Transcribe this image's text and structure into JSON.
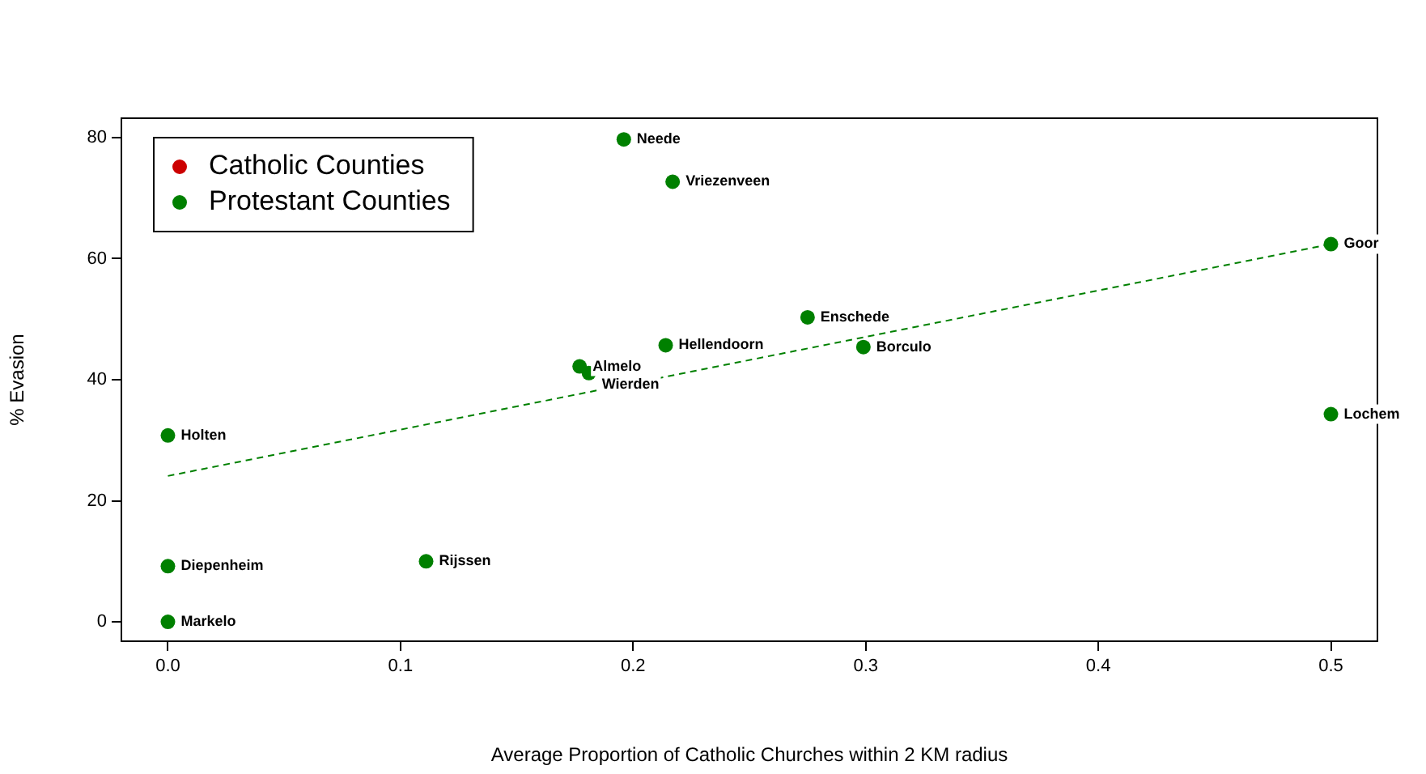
{
  "chart_data": {
    "type": "scatter",
    "xlabel": "Average Proportion of Catholic Churches within 2 KM radius",
    "ylabel": "% Evasion",
    "xlim": [
      -0.02,
      0.52
    ],
    "ylim": [
      -3.2,
      83.2
    ],
    "xticks": [
      {
        "value": 0,
        "label": "0.0"
      },
      0.1,
      0.2,
      0.3,
      0.4,
      0.5
    ],
    "yticks": [
      0,
      20,
      40,
      60,
      80
    ],
    "grid": false,
    "legend": "top left",
    "marker": "circle",
    "series": [
      {
        "name": "Catholic Counties",
        "color": "#cc0000"
      },
      {
        "name": "Protestant Counties",
        "color": "#008000",
        "x": [
          0.196,
          0.217,
          0.5,
          0.275,
          0.214,
          0.299,
          0.177,
          0.181,
          0,
          0.5,
          0,
          0.111,
          0
        ],
        "values": [
          79.7,
          72.7,
          62.4,
          50.3,
          45.7,
          45.4,
          42.2,
          41.1,
          30.8,
          34.3,
          9.2,
          10.0,
          0
        ]
      },
      {
        "type": "line",
        "color": "#008000",
        "line_style": "dashed",
        "marker": "none",
        "x": [
          0,
          0.5
        ],
        "values": [
          24.1,
          62.4
        ]
      }
    ],
    "annotations": [
      {
        "text": "Neede",
        "x": 0.196,
        "y": 79.7
      },
      {
        "text": "Vriezenveen",
        "x": 0.217,
        "y": 72.7
      },
      {
        "text": "Goor",
        "x": 0.5,
        "y": 62.4
      },
      {
        "text": "Enschede",
        "x": 0.275,
        "y": 50.3
      },
      {
        "text": "Hellendoorn",
        "x": 0.214,
        "y": 45.7
      },
      {
        "text": "Borculo",
        "x": 0.299,
        "y": 45.4
      },
      {
        "text": "Almelo",
        "x": 0.177,
        "y": 42.2
      },
      {
        "text": "Wierden",
        "x": 0.181,
        "y": 41.1
      },
      {
        "text": "Holten",
        "x": 0,
        "y": 30.8
      },
      {
        "text": "Lochem",
        "x": 0.5,
        "y": 34.3
      },
      {
        "text": "Diepenheim",
        "x": 0,
        "y": 9.2
      },
      {
        "text": "Rijssen",
        "x": 0.111,
        "y": 10.0
      },
      {
        "text": "Markelo",
        "x": 0,
        "y": 0
      }
    ]
  }
}
